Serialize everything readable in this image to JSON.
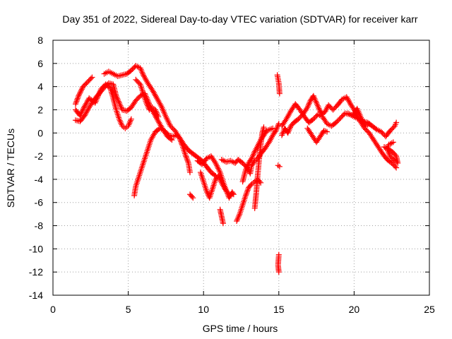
{
  "chart_data": {
    "type": "scatter",
    "title": "Day 351 of 2022, Sidereal Day-to-day VTEC variation (SDTVAR) for receiver karr",
    "xlabel": "GPS time / hours",
    "ylabel": "SDTVAR / TECUs",
    "xlim": [
      0,
      25
    ],
    "ylim": [
      -14,
      8
    ],
    "xticks": [
      0,
      5,
      10,
      15,
      20,
      25
    ],
    "yticks": [
      -14,
      -12,
      -10,
      -8,
      -6,
      -4,
      -2,
      0,
      2,
      4,
      6,
      8
    ],
    "xtick_labels": [
      "0",
      "5",
      "10",
      "15",
      "20",
      "25"
    ],
    "ytick_labels": [
      "-14",
      "-12",
      "-10",
      "-8",
      "-6",
      "-4",
      "-2",
      "0",
      "2",
      "4",
      "6",
      "8"
    ],
    "grid": true,
    "marker": "+",
    "color": "#ff0000",
    "series": [
      {
        "name": "",
        "trace": [
          [
            1.5,
            2.5
          ],
          [
            1.7,
            3.2
          ],
          [
            2.0,
            4.0
          ],
          [
            2.3,
            4.4
          ],
          [
            2.6,
            4.8
          ]
        ]
      },
      {
        "name": "",
        "trace": [
          [
            1.5,
            2.0
          ],
          [
            1.8,
            1.5
          ],
          [
            2.1,
            2.3
          ],
          [
            2.4,
            3.0
          ],
          [
            2.8,
            2.6
          ],
          [
            3.2,
            3.8
          ],
          [
            3.5,
            4.2
          ],
          [
            3.8,
            3.9
          ],
          [
            4.0,
            3.0
          ],
          [
            4.2,
            2.0
          ],
          [
            4.4,
            1.2
          ],
          [
            4.6,
            0.6
          ],
          [
            4.8,
            0.4
          ],
          [
            5.0,
            0.6
          ],
          [
            5.2,
            1.2
          ]
        ]
      },
      {
        "name": "",
        "trace": [
          [
            1.5,
            1.1
          ],
          [
            1.8,
            1.0
          ],
          [
            2.1,
            1.5
          ],
          [
            2.4,
            2.2
          ],
          [
            2.7,
            2.8
          ],
          [
            3.0,
            3.3
          ],
          [
            3.4,
            3.9
          ],
          [
            3.7,
            4.3
          ],
          [
            4.0,
            4.2
          ],
          [
            4.2,
            3.2
          ],
          [
            4.4,
            2.6
          ],
          [
            4.6,
            2.0
          ],
          [
            4.9,
            1.9
          ],
          [
            5.2,
            2.2
          ],
          [
            5.5,
            2.8
          ],
          [
            5.8,
            3.2
          ],
          [
            6.1,
            3.4
          ],
          [
            6.3,
            2.8
          ],
          [
            6.5,
            2.2
          ],
          [
            6.7,
            1.7
          ],
          [
            7.0,
            1.0
          ],
          [
            7.3,
            0.3
          ],
          [
            7.6,
            -0.3
          ],
          [
            7.9,
            -0.6
          ]
        ]
      },
      {
        "name": "",
        "trace": [
          [
            3.4,
            5.1
          ],
          [
            3.7,
            5.3
          ],
          [
            4.0,
            5.1
          ],
          [
            4.3,
            4.9
          ],
          [
            4.6,
            5.0
          ],
          [
            4.9,
            5.1
          ],
          [
            5.2,
            5.4
          ],
          [
            5.5,
            5.8
          ],
          [
            5.8,
            5.6
          ],
          [
            6.0,
            5.0
          ],
          [
            6.3,
            4.3
          ],
          [
            6.6,
            3.7
          ],
          [
            6.9,
            3.0
          ],
          [
            7.2,
            2.3
          ],
          [
            7.5,
            1.4
          ],
          [
            7.8,
            0.6
          ],
          [
            8.1,
            0.2
          ],
          [
            8.4,
            -0.4
          ],
          [
            8.7,
            -1.0
          ],
          [
            9.0,
            -1.5
          ],
          [
            9.3,
            -1.8
          ],
          [
            9.6,
            -2.1
          ],
          [
            9.9,
            -2.4
          ],
          [
            10.2,
            -2.9
          ],
          [
            10.5,
            -3.4
          ],
          [
            10.8,
            -3.7
          ]
        ]
      },
      {
        "name": "",
        "trace": [
          [
            5.4,
            -5.4
          ],
          [
            5.5,
            -4.6
          ],
          [
            5.7,
            -3.8
          ],
          [
            5.9,
            -3.0
          ],
          [
            6.1,
            -2.2
          ],
          [
            6.3,
            -1.4
          ],
          [
            6.5,
            -0.6
          ],
          [
            6.8,
            0.1
          ],
          [
            7.1,
            0.4
          ],
          [
            7.4,
            0.2
          ],
          [
            7.7,
            -0.2
          ],
          [
            8.0,
            -0.3
          ],
          [
            8.2,
            -0.2
          ],
          [
            8.4,
            -0.4
          ],
          [
            8.6,
            -1.1
          ],
          [
            8.8,
            -1.9
          ],
          [
            9.0,
            -2.6
          ],
          [
            9.1,
            -3.4
          ]
        ]
      },
      {
        "name": "",
        "trace": [
          [
            5.5,
            4.6
          ],
          [
            5.8,
            4.2
          ],
          [
            6.0,
            3.4
          ],
          [
            6.2,
            2.6
          ],
          [
            6.4,
            2.0
          ],
          [
            6.6,
            2.2
          ],
          [
            6.8,
            2.0
          ],
          [
            7.0,
            1.4
          ]
        ]
      },
      {
        "name": "",
        "trace": [
          [
            9.1,
            -5.3
          ],
          [
            9.3,
            -5.6
          ]
        ]
      },
      {
        "name": "",
        "trace": [
          [
            9.6,
            -2.4
          ],
          [
            9.9,
            -2.7
          ],
          [
            10.2,
            -2.2
          ],
          [
            10.5,
            -2.0
          ],
          [
            10.8,
            -2.6
          ],
          [
            11.1,
            -3.4
          ],
          [
            11.4,
            -4.6
          ],
          [
            11.7,
            -5.6
          ],
          [
            11.9,
            -5.1
          ],
          [
            12.0,
            -5.3
          ]
        ]
      },
      {
        "name": "",
        "trace": [
          [
            9.8,
            -3.4
          ],
          [
            10.0,
            -4.2
          ],
          [
            10.2,
            -5.0
          ],
          [
            10.4,
            -5.6
          ],
          [
            10.6,
            -4.8
          ],
          [
            10.8,
            -4.0
          ],
          [
            11.0,
            -3.7
          ],
          [
            11.2,
            -4.3
          ],
          [
            11.5,
            -5.0
          ],
          [
            11.8,
            -5.4
          ]
        ]
      },
      {
        "name": "",
        "trace": [
          [
            11.1,
            -6.6
          ],
          [
            11.2,
            -7.2
          ],
          [
            11.3,
            -7.8
          ]
        ]
      },
      {
        "name": "",
        "trace": [
          [
            11.2,
            -2.3
          ],
          [
            11.5,
            -2.5
          ],
          [
            11.8,
            -2.4
          ],
          [
            12.1,
            -2.6
          ],
          [
            12.3,
            -2.3
          ],
          [
            12.6,
            -2.6
          ],
          [
            12.9,
            -3.0
          ],
          [
            13.1,
            -3.5
          ],
          [
            13.2,
            -2.8
          ],
          [
            13.4,
            -2.4
          ],
          [
            13.6,
            -2.2
          ],
          [
            13.8,
            -1.8
          ],
          [
            14.1,
            -1.3
          ],
          [
            14.4,
            -0.7
          ],
          [
            14.6,
            -0.2
          ],
          [
            14.8,
            0.2
          ],
          [
            15.0,
            0.8
          ]
        ]
      },
      {
        "name": "",
        "trace": [
          [
            12.2,
            -7.6
          ],
          [
            12.4,
            -7.0
          ],
          [
            12.6,
            -6.2
          ],
          [
            12.8,
            -5.4
          ],
          [
            13.0,
            -4.7
          ],
          [
            13.2,
            -4.4
          ],
          [
            13.4,
            -4.2
          ],
          [
            13.6,
            -4.0
          ],
          [
            13.8,
            -4.3
          ]
        ]
      },
      {
        "name": "",
        "trace": [
          [
            12.6,
            -4.2
          ],
          [
            12.8,
            -3.2
          ],
          [
            13.0,
            -2.6
          ],
          [
            13.2,
            -2.2
          ],
          [
            13.4,
            -1.6
          ],
          [
            13.6,
            -1.1
          ],
          [
            13.8,
            -0.6
          ],
          [
            14.0,
            -0.2
          ],
          [
            14.2,
            0.2
          ],
          [
            14.4,
            0.3
          ],
          [
            14.6,
            0.4
          ]
        ]
      },
      {
        "name": "",
        "trace": [
          [
            13.4,
            -6.5
          ],
          [
            13.5,
            -5.2
          ],
          [
            13.6,
            -3.6
          ],
          [
            13.7,
            -2.2
          ],
          [
            13.8,
            -1.0
          ],
          [
            13.9,
            0.0
          ],
          [
            14.0,
            0.5
          ]
        ]
      },
      {
        "name": "",
        "trace": [
          [
            14.9,
            5.0
          ],
          [
            15.0,
            4.3
          ],
          [
            15.05,
            3.4
          ],
          [
            14.95,
            -2.8
          ],
          [
            15.05,
            -2.9
          ],
          [
            15.0,
            -10.5
          ],
          [
            14.95,
            -11.4
          ],
          [
            15.0,
            -12.0
          ]
        ]
      },
      {
        "name": "",
        "trace": [
          [
            15.2,
            0.6
          ],
          [
            15.5,
            1.2
          ],
          [
            15.8,
            1.9
          ],
          [
            16.1,
            2.5
          ],
          [
            16.4,
            2.0
          ],
          [
            16.7,
            1.4
          ],
          [
            17.0,
            0.9
          ],
          [
            17.3,
            1.2
          ],
          [
            17.6,
            1.6
          ],
          [
            17.9,
            1.4
          ],
          [
            18.2,
            0.8
          ],
          [
            18.5,
            0.6
          ],
          [
            18.8,
            0.9
          ],
          [
            19.1,
            1.3
          ],
          [
            19.4,
            1.7
          ],
          [
            19.7,
            1.6
          ],
          [
            20.0,
            1.4
          ],
          [
            20.3,
            1.2
          ],
          [
            20.6,
            1.0
          ],
          [
            20.9,
            0.9
          ],
          [
            21.2,
            0.6
          ],
          [
            21.5,
            0.3
          ],
          [
            21.8,
            0.1
          ],
          [
            22.1,
            -0.3
          ],
          [
            22.4,
            0.2
          ],
          [
            22.7,
            0.6
          ],
          [
            22.8,
            0.9
          ]
        ]
      },
      {
        "name": "",
        "trace": [
          [
            15.2,
            -0.2
          ],
          [
            15.4,
            0.4
          ],
          [
            15.6,
            0.0
          ],
          [
            15.8,
            0.6
          ],
          [
            16.0,
            0.9
          ],
          [
            16.3,
            1.2
          ],
          [
            16.6,
            1.6
          ],
          [
            16.9,
            2.2
          ],
          [
            17.1,
            2.8
          ],
          [
            17.3,
            3.2
          ],
          [
            17.5,
            2.6
          ],
          [
            17.7,
            2.0
          ],
          [
            17.9,
            1.6
          ],
          [
            18.1,
            1.9
          ],
          [
            18.3,
            2.4
          ],
          [
            18.6,
            2.0
          ],
          [
            18.9,
            2.4
          ],
          [
            19.2,
            2.9
          ],
          [
            19.5,
            3.1
          ],
          [
            19.8,
            2.4
          ],
          [
            20.1,
            1.8
          ],
          [
            20.4,
            1.0
          ],
          [
            20.7,
            0.4
          ],
          [
            21.0,
            0.0
          ],
          [
            21.3,
            -0.6
          ],
          [
            21.6,
            -1.2
          ],
          [
            21.9,
            -1.8
          ],
          [
            22.2,
            -2.3
          ],
          [
            22.5,
            -2.6
          ],
          [
            22.8,
            -3.0
          ]
        ]
      },
      {
        "name": "",
        "trace": [
          [
            16.9,
            0.4
          ],
          [
            17.2,
            -0.2
          ],
          [
            17.5,
            -0.8
          ],
          [
            17.8,
            -0.2
          ],
          [
            18.0,
            0.2
          ],
          [
            18.2,
            0.1
          ]
        ]
      },
      {
        "name": "",
        "trace": [
          [
            19.6,
            1.7
          ],
          [
            19.9,
            1.5
          ],
          [
            20.2,
            2.1
          ],
          [
            20.5,
            1.2
          ],
          [
            20.8,
            0.6
          ],
          [
            21.0,
            0.8
          ]
        ]
      },
      {
        "name": "",
        "trace": [
          [
            22.0,
            -1.2
          ],
          [
            22.3,
            -1.4
          ],
          [
            22.6,
            -1.7
          ],
          [
            22.8,
            -2.0
          ],
          [
            22.9,
            -2.6
          ],
          [
            22.7,
            -2.4
          ],
          [
            22.4,
            -2.0
          ],
          [
            22.2,
            -1.4
          ],
          [
            22.3,
            -1.0
          ],
          [
            22.6,
            -0.8
          ]
        ]
      }
    ]
  }
}
